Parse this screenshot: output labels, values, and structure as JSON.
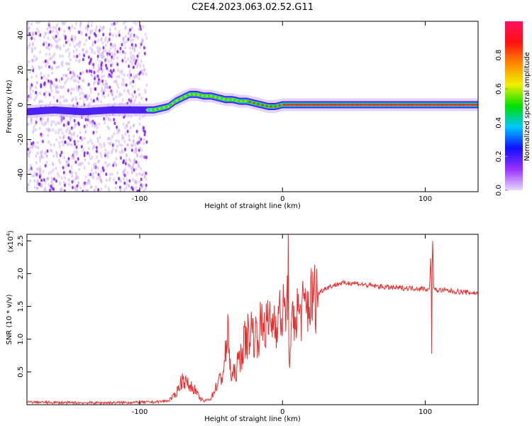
{
  "chart_data": [
    {
      "type": "heatmap",
      "title": "C2E4.2023.063.02.52.G11",
      "xlabel": "Height of straight line (km)",
      "ylabel": "Frequency (Hz)",
      "xlim": [
        -179,
        137
      ],
      "ylim": [
        -50,
        48
      ],
      "xticks": [
        -100,
        0,
        100
      ],
      "xtick_labels": [
        "-100",
        "0",
        "100"
      ],
      "yticks": [
        -40,
        -20,
        0,
        20,
        40
      ],
      "ytick_labels": [
        "-40",
        "-20",
        "0",
        "20",
        "40"
      ],
      "ridge": {
        "height": [
          -179,
          -160,
          -140,
          -120,
          -100,
          -90,
          -80,
          -75,
          -70,
          -65,
          -60,
          -55,
          -50,
          -45,
          -40,
          -35,
          -30,
          -25,
          -20,
          -15,
          -10,
          -5,
          0,
          50,
          100,
          137
        ],
        "frequency": [
          -4,
          -3,
          -4,
          -3,
          -3,
          -3,
          -1,
          2,
          4,
          6,
          6,
          5,
          5,
          4,
          3,
          3,
          2,
          2,
          1,
          0,
          -1,
          -1,
          0,
          0,
          0,
          0
        ]
      },
      "scatter_region_km": [
        -179,
        -100
      ],
      "colorbar": {
        "label": "Normalized spectral amplitude",
        "range": [
          0,
          1
        ],
        "ticks": [
          0.0,
          0.2,
          0.4,
          0.6,
          0.8
        ],
        "tick_labels": [
          "0.0",
          "0.2",
          "0.4",
          "0.6",
          "0.8"
        ],
        "colors": [
          "#e8d8ff",
          "#9a30ff",
          "#1010ff",
          "#00c8ff",
          "#00e000",
          "#f0f000",
          "#ff8800",
          "#ff1010",
          "#ff1060"
        ]
      }
    },
    {
      "type": "line",
      "xlabel": "Height of straight line (km)",
      "ylabel": "SNR (10 * v/v)",
      "y_multiplier": "(x10^4)",
      "y_multiplier_base": "(x10",
      "y_multiplier_exp": "4",
      "xlim": [
        -179,
        137
      ],
      "ylim": [
        0,
        2.6
      ],
      "xticks": [
        -100,
        0,
        100
      ],
      "xtick_labels": [
        "-100",
        "0",
        "100"
      ],
      "yticks": [
        0.5,
        1.0,
        1.5,
        2.0,
        2.5
      ],
      "ytick_labels": [
        "0.5",
        "1.0",
        "1.5",
        "2.0",
        "2.5"
      ],
      "color": "#e83030",
      "x": [
        -179,
        -150,
        -120,
        -90,
        -80,
        -75,
        -72,
        -70,
        -66,
        -62,
        -58,
        -55,
        -50,
        -46,
        -42,
        -39,
        -38,
        -36,
        -33,
        -30,
        -26,
        -22,
        -18,
        -14,
        -10,
        -6,
        -2,
        1,
        3,
        4,
        5,
        7,
        10,
        15,
        20,
        25,
        30,
        40,
        50,
        60,
        70,
        80,
        90,
        100,
        103,
        104,
        104.5,
        105,
        106,
        110,
        120,
        137
      ],
      "y": [
        0.04,
        0.03,
        0.03,
        0.04,
        0.06,
        0.15,
        0.3,
        0.4,
        0.3,
        0.25,
        0.1,
        0.05,
        0.1,
        0.3,
        0.45,
        0.9,
        1.1,
        0.4,
        0.5,
        0.7,
        1.0,
        1.15,
        1.05,
        1.25,
        1.2,
        1.3,
        1.35,
        1.4,
        1.45,
        2.05,
        0.5,
        1.3,
        1.4,
        1.45,
        1.6,
        1.7,
        1.78,
        1.85,
        1.86,
        1.82,
        1.8,
        1.78,
        1.78,
        1.77,
        1.75,
        2.4,
        0.8,
        2.65,
        1.75,
        1.75,
        1.73,
        1.7
      ]
    }
  ]
}
